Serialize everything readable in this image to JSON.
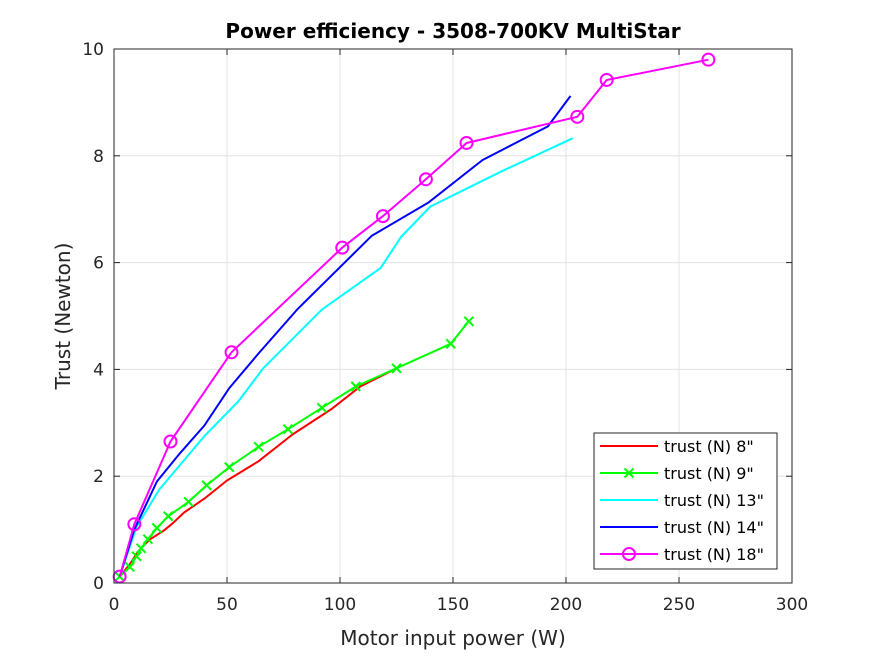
{
  "chart_data": {
    "type": "line",
    "title": "Power efficiency - 3508-700KV MultiStar",
    "xlabel": "Motor input power (W)",
    "ylabel": "Trust (Newton)",
    "xlim": [
      0,
      300
    ],
    "ylim": [
      0,
      10
    ],
    "xticks": [
      "0",
      "50",
      "100",
      "150",
      "200",
      "250",
      "300"
    ],
    "yticks": [
      "0",
      "2",
      "4",
      "6",
      "8",
      "10"
    ],
    "grid": true,
    "legend_position": "bottom-right",
    "series": [
      {
        "name": "trust (N) 8\"",
        "color": "#ff0000",
        "marker": "none",
        "x": [
          2.5,
          7,
          10,
          13,
          16,
          22,
          26,
          31,
          40,
          50,
          64,
          79,
          96,
          109,
          125
        ],
        "y": [
          0.12,
          0.35,
          0.55,
          0.7,
          0.82,
          0.98,
          1.12,
          1.32,
          1.58,
          1.92,
          2.28,
          2.78,
          3.25,
          3.68,
          4.02
        ]
      },
      {
        "name": "trust (N) 9\"",
        "color": "#00ff00",
        "marker": "x",
        "x": [
          2.5,
          7,
          10,
          12,
          15,
          19,
          24,
          33,
          41,
          51,
          64,
          77,
          92,
          107,
          125,
          149,
          157
        ],
        "y": [
          0.12,
          0.3,
          0.5,
          0.65,
          0.82,
          1.03,
          1.25,
          1.52,
          1.83,
          2.17,
          2.55,
          2.88,
          3.28,
          3.68,
          4.02,
          4.48,
          4.9
        ]
      },
      {
        "name": "trust (N) 13\"",
        "color": "#00ffff",
        "marker": "none",
        "x": [
          2.5,
          10,
          20,
          40,
          55,
          66,
          92,
          118,
          127,
          140,
          172,
          203
        ],
        "y": [
          0.12,
          1.05,
          1.75,
          2.75,
          3.4,
          4.02,
          5.12,
          5.9,
          6.48,
          7.05,
          7.72,
          8.33
        ]
      },
      {
        "name": "trust (N) 14\"",
        "color": "#0000ff",
        "marker": "none",
        "x": [
          2.5,
          9,
          19,
          29,
          40,
          51,
          64,
          81,
          114,
          139,
          163,
          192,
          202
        ],
        "y": [
          0.12,
          1.0,
          1.9,
          2.42,
          2.95,
          3.65,
          4.3,
          5.12,
          6.5,
          7.12,
          7.92,
          8.55,
          9.12
        ]
      },
      {
        "name": "trust (N) 18\"",
        "color": "#ff00ff",
        "marker": "o",
        "x": [
          2.5,
          9,
          25,
          52,
          101,
          119,
          138,
          156,
          205,
          218,
          263
        ],
        "y": [
          0.12,
          1.1,
          2.65,
          4.32,
          6.28,
          6.87,
          7.56,
          8.24,
          8.73,
          9.42,
          9.8
        ]
      }
    ]
  }
}
